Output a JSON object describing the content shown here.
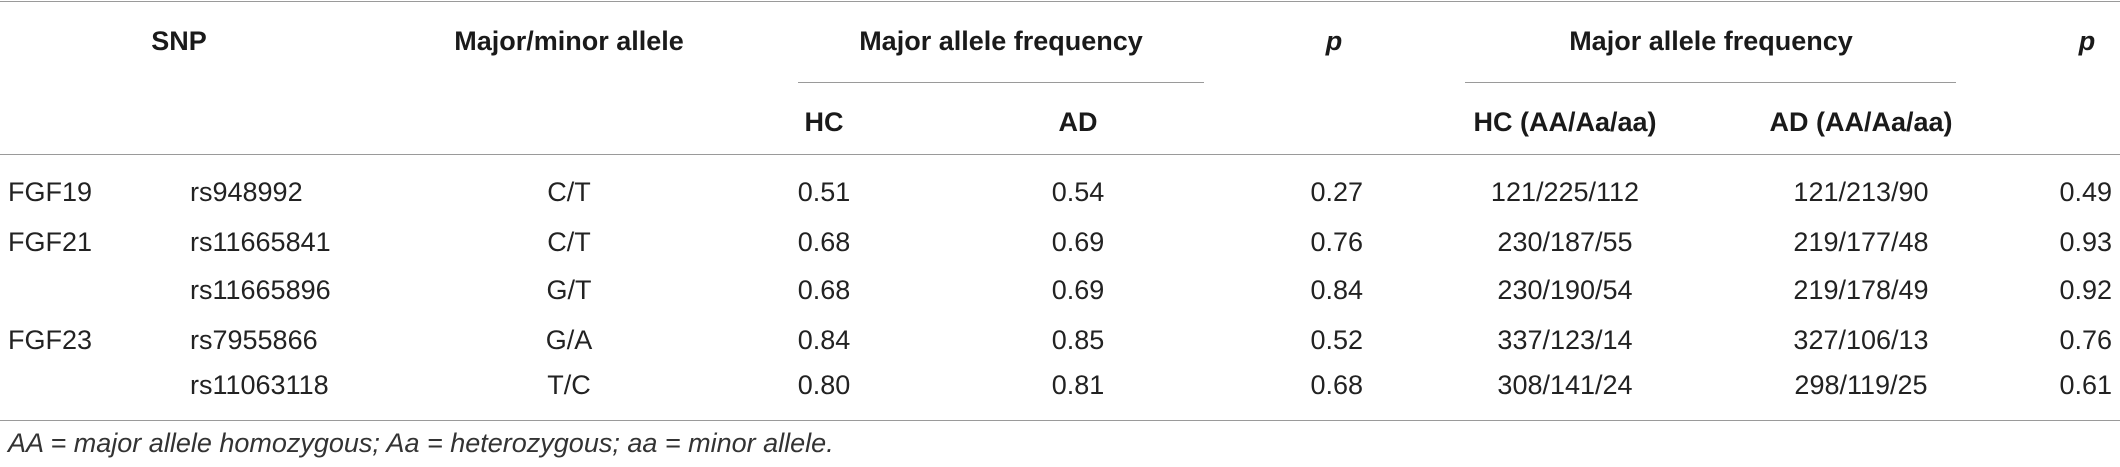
{
  "header": {
    "snp": "SNP",
    "major_minor_allele": "Major/minor allele",
    "freq_group_1": "Major allele frequency",
    "p_1": "p",
    "freq_group_2": "Major allele frequency",
    "p_2": "p",
    "hc": "HC",
    "ad": "AD",
    "hc_genotype": "HC (AA/Aa/aa)",
    "ad_genotype": "AD (AA/Aa/aa)"
  },
  "rows": [
    {
      "gene": "FGF19",
      "snp": "rs948992",
      "allele": "C/T",
      "hc": "0.51",
      "ad": "0.54",
      "p1": "0.27",
      "hc_gt": "121/225/112",
      "ad_gt": "121/213/90",
      "p2": "0.49"
    },
    {
      "gene": "FGF21",
      "snp": "rs11665841",
      "allele": "C/T",
      "hc": "0.68",
      "ad": "0.69",
      "p1": "0.76",
      "hc_gt": "230/187/55",
      "ad_gt": "219/177/48",
      "p2": "0.93"
    },
    {
      "gene": "",
      "snp": "rs11665896",
      "allele": "G/T",
      "hc": "0.68",
      "ad": "0.69",
      "p1": "0.84",
      "hc_gt": "230/190/54",
      "ad_gt": "219/178/49",
      "p2": "0.92"
    },
    {
      "gene": "FGF23",
      "snp": "rs7955866",
      "allele": "G/A",
      "hc": "0.84",
      "ad": "0.85",
      "p1": "0.52",
      "hc_gt": "337/123/14",
      "ad_gt": "327/106/13",
      "p2": "0.76"
    },
    {
      "gene": "",
      "snp": "rs11063118",
      "allele": "T/C",
      "hc": "0.80",
      "ad": "0.81",
      "p1": "0.68",
      "hc_gt": "308/141/24",
      "ad_gt": "298/119/25",
      "p2": "0.61"
    }
  ],
  "footnote": "AA = major allele homozygous; Aa = heterozygous; aa = minor allele."
}
